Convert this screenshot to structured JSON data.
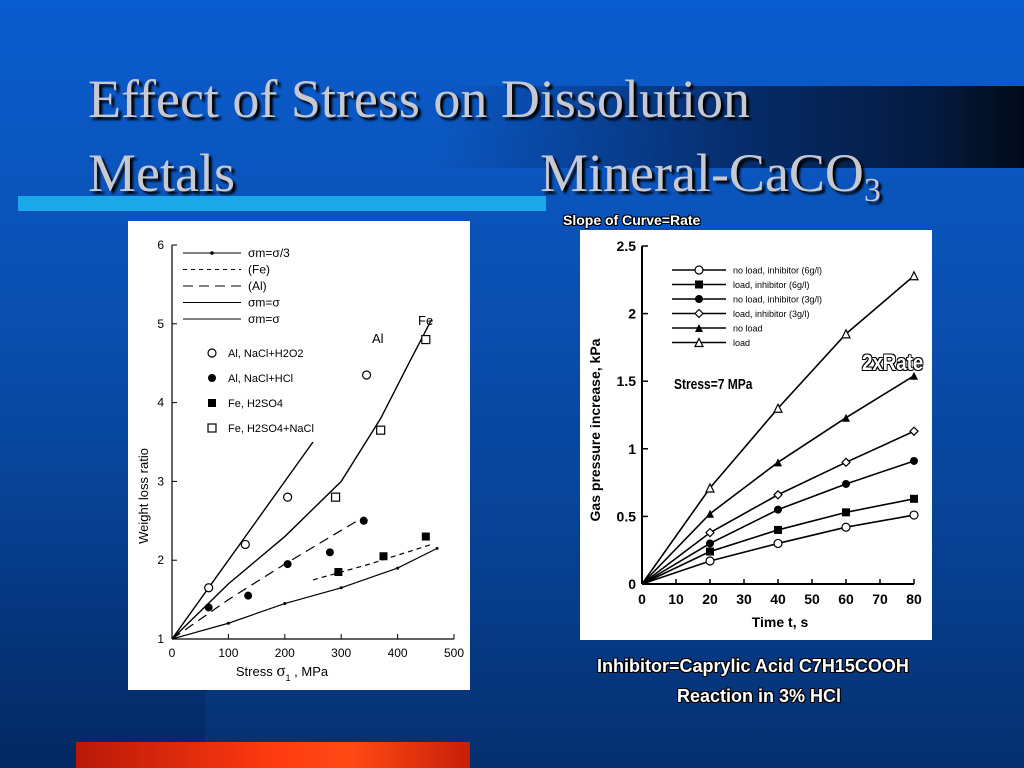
{
  "slide": {
    "title_line1": "Effect of Stress on Dissolution",
    "title_metals": "Metals",
    "title_mineral": "Mineral-CaCO",
    "title_mineral_sub": "3",
    "slope_note": "Slope of Curve=Rate",
    "rate_note": "2xRate",
    "stress_note": "Stress=7 MPa",
    "caption_line1": "Inhibitor=Caprylic Acid C7H15COOH",
    "caption_line2": "Reaction in 3% HCl"
  },
  "colors": {
    "background": "#0a4fb0",
    "accent_line": "#1ca8e8",
    "accent_red": "#ff3a10"
  },
  "chart_data": [
    {
      "type": "line",
      "ylabel": "Weight loss ratio",
      "xlabel": "Stress σ1 , MPa",
      "xlim": [
        0,
        500
      ],
      "ylim": [
        1,
        6
      ],
      "x_ticks": [
        "0",
        "100",
        "200",
        "300",
        "400",
        "500"
      ],
      "y_ticks": [
        "1",
        "2",
        "3",
        "4",
        "5",
        "6"
      ],
      "legend": [
        {
          "symbol": "σm=σ/3",
          "style": "solid-dots"
        },
        {
          "symbol": "(Fe)",
          "style": "dashed"
        },
        {
          "symbol": "(Al)",
          "style": "long-dashed"
        },
        {
          "symbol": "σm=σ",
          "style": "solid"
        },
        {
          "symbol": "σm=σ",
          "style": "solid"
        },
        {
          "symbol": "Al, NaCl+H2O2",
          "style": "open-circle"
        },
        {
          "symbol": "Al, NaCl+HCl",
          "style": "filled-circle"
        },
        {
          "symbol": "Fe, H2SO4",
          "style": "filled-square"
        },
        {
          "symbol": "Fe, H2SO4+NaCl",
          "style": "open-square"
        }
      ],
      "annotations": [
        "Fe",
        "Al"
      ],
      "series": [
        {
          "name": "Al, NaCl+H2O2",
          "x": [
            65,
            130,
            205,
            345
          ],
          "y": [
            1.65,
            2.2,
            2.8,
            4.35
          ]
        },
        {
          "name": "Al, NaCl+HCl",
          "x": [
            65,
            135,
            205,
            280,
            340
          ],
          "y": [
            1.4,
            1.55,
            1.95,
            2.1,
            2.5
          ]
        },
        {
          "name": "Fe, H2SO4",
          "x": [
            295,
            375,
            450
          ],
          "y": [
            1.85,
            2.05,
            2.3
          ]
        },
        {
          "name": "Fe, H2SO4+NaCl",
          "x": [
            290,
            370,
            450
          ],
          "y": [
            2.8,
            3.65,
            4.8
          ]
        }
      ],
      "curves": [
        {
          "name": "σm=σ (Fe)",
          "x": [
            0,
            100,
            200,
            300,
            370,
            420,
            460
          ],
          "y": [
            1,
            1.7,
            2.3,
            3.0,
            3.8,
            4.5,
            5.05
          ]
        },
        {
          "name": "σm=σ (Al)",
          "x": [
            0,
            80,
            160,
            220,
            250
          ],
          "y": [
            1,
            1.8,
            2.6,
            3.2,
            3.5
          ]
        },
        {
          "name": "σm=σ/3",
          "x": [
            0,
            100,
            200,
            300,
            400,
            470
          ],
          "y": [
            1,
            1.2,
            1.45,
            1.65,
            1.9,
            2.15
          ]
        },
        {
          "name": "(Fe) dashed",
          "x": [
            250,
            350,
            460
          ],
          "y": [
            1.75,
            1.95,
            2.2
          ]
        },
        {
          "name": "(Al) long dashed",
          "x": [
            0,
            100,
            200,
            340
          ],
          "y": [
            1,
            1.5,
            1.95,
            2.55
          ]
        }
      ]
    },
    {
      "type": "line",
      "ylabel": "Gas pressure increase, kPa",
      "xlabel": "Time t,  s",
      "xlim": [
        0,
        80
      ],
      "ylim": [
        0,
        2.5
      ],
      "x_ticks": [
        "0",
        "10",
        "20",
        "30",
        "40",
        "50",
        "60",
        "70",
        "80"
      ],
      "y_ticks": [
        "0",
        "0.5",
        "1",
        "1.5",
        "2",
        "2.5"
      ],
      "x": [
        20,
        40,
        60,
        80
      ],
      "series": [
        {
          "name": "no load, inhibitor (6g/l)",
          "marker": "open-circle",
          "values": [
            0.17,
            0.3,
            0.42,
            0.51
          ]
        },
        {
          "name": "load, inhibitor (6g/l)",
          "marker": "filled-square",
          "values": [
            0.24,
            0.4,
            0.53,
            0.63
          ]
        },
        {
          "name": "no load, inhibitor (3g/l)",
          "marker": "filled-circle",
          "values": [
            0.3,
            0.55,
            0.74,
            0.91
          ]
        },
        {
          "name": "load, inhibitor (3g/l)",
          "marker": "open-diamond",
          "values": [
            0.38,
            0.66,
            0.9,
            1.13
          ]
        },
        {
          "name": "no load",
          "marker": "filled-triangle",
          "values": [
            0.52,
            0.9,
            1.23,
            1.54
          ]
        },
        {
          "name": "load",
          "marker": "open-triangle",
          "values": [
            0.71,
            1.3,
            1.85,
            2.28
          ]
        }
      ]
    }
  ]
}
